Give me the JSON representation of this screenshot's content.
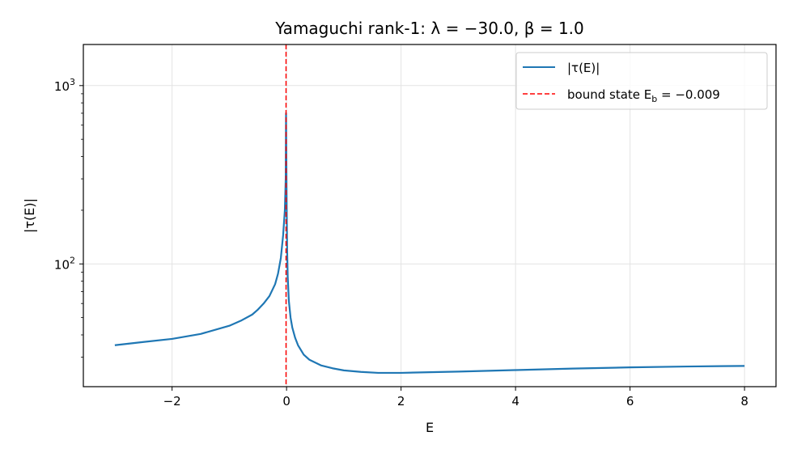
{
  "chart_data": {
    "type": "line",
    "title": "Yamaguchi rank-1: λ = −30.0, β = 1.0",
    "xlabel": "E",
    "ylabel": "|τ(E)|",
    "xlim": [
      -3.55,
      8.55
    ],
    "ylim": [
      20.5,
      1700
    ],
    "yscale": "log",
    "grid": true,
    "legend_placement": "top-right",
    "xticks": [
      {
        "value": -2,
        "label": "−2"
      },
      {
        "value": 0,
        "label": "0"
      },
      {
        "value": 2,
        "label": "2"
      },
      {
        "value": 4,
        "label": "4"
      },
      {
        "value": 6,
        "label": "6"
      },
      {
        "value": 8,
        "label": "8"
      }
    ],
    "yticks": [
      {
        "value": 100,
        "base": "10",
        "exp": "2"
      },
      {
        "value": 1000,
        "base": "10",
        "exp": "3"
      }
    ],
    "series": [
      {
        "name": "|τ(E)|",
        "color": "#1f77b4",
        "style": "solid",
        "x": [
          -3.0,
          -2.5,
          -2.0,
          -1.5,
          -1.0,
          -0.8,
          -0.6,
          -0.5,
          -0.4,
          -0.3,
          -0.2,
          -0.15,
          -0.1,
          -0.06,
          -0.03,
          -0.015,
          -0.009,
          -0.004,
          0.0,
          0.005,
          0.01,
          0.02,
          0.04,
          0.07,
          0.1,
          0.15,
          0.2,
          0.3,
          0.4,
          0.6,
          0.8,
          1.0,
          1.3,
          1.6,
          2.0,
          2.5,
          3.0,
          4.0,
          5.0,
          6.0,
          7.0,
          8.0
        ],
        "y": [
          35,
          36.5,
          38,
          40.5,
          45,
          48,
          52,
          55.5,
          60,
          66,
          77,
          88,
          108,
          145,
          200,
          300,
          700,
          400,
          260,
          170,
          120,
          85,
          62,
          50,
          44,
          38.5,
          35,
          31,
          29,
          27,
          26,
          25.3,
          24.8,
          24.5,
          24.5,
          24.7,
          24.9,
          25.4,
          25.9,
          26.3,
          26.6,
          26.8
        ]
      },
      {
        "name": "bound state E_b = −0.009",
        "color": "#ff0000",
        "style": "dashed",
        "vertical_x": -0.009
      }
    ]
  },
  "legend": {
    "entries": [
      {
        "plain": "|τ(E)|"
      },
      {
        "plain": "bound state E",
        "sub": "b",
        "tail": " = −0.009"
      }
    ]
  }
}
